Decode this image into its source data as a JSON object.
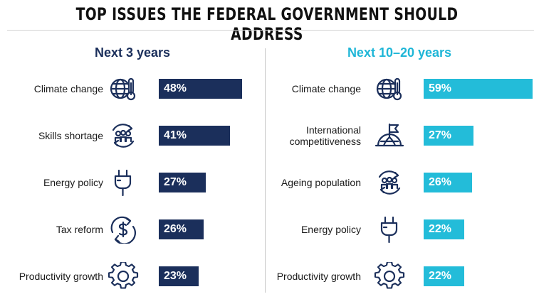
{
  "title": "TOP ISSUES THE FEDERAL GOVERNMENT SHOULD ADDRESS",
  "colors": {
    "navy": "#1b2f5b",
    "cyan": "#23bcd9"
  },
  "chart_data": [
    {
      "type": "bar",
      "orientation": "horizontal",
      "title": "Next 3 years",
      "categories": [
        "Climate change",
        "Skills shortage",
        "Energy policy",
        "Tax reform",
        "Productivity growth"
      ],
      "values": [
        48,
        41,
        27,
        26,
        23
      ],
      "value_labels": [
        "48%",
        "41%",
        "27%",
        "26%",
        "23%"
      ],
      "icons": [
        "globe-thermometer-icon",
        "people-cycle-icon",
        "plug-icon",
        "dollar-cycle-icon",
        "gear-icon"
      ],
      "color": "#1b2f5b",
      "xlim": [
        0,
        60
      ]
    },
    {
      "type": "bar",
      "orientation": "horizontal",
      "title": "Next 10–20 years",
      "categories": [
        "Climate change",
        "International competitiveness",
        "Ageing population",
        "Energy policy",
        "Productivity growth"
      ],
      "values": [
        59,
        27,
        26,
        22,
        22
      ],
      "value_labels": [
        "59%",
        "27%",
        "26%",
        "22%",
        "22%"
      ],
      "icons": [
        "globe-thermometer-icon",
        "flag-globe-icon",
        "people-cycle-icon",
        "plug-icon",
        "gear-icon"
      ],
      "color": "#23bcd9",
      "xlim": [
        0,
        60
      ]
    }
  ]
}
